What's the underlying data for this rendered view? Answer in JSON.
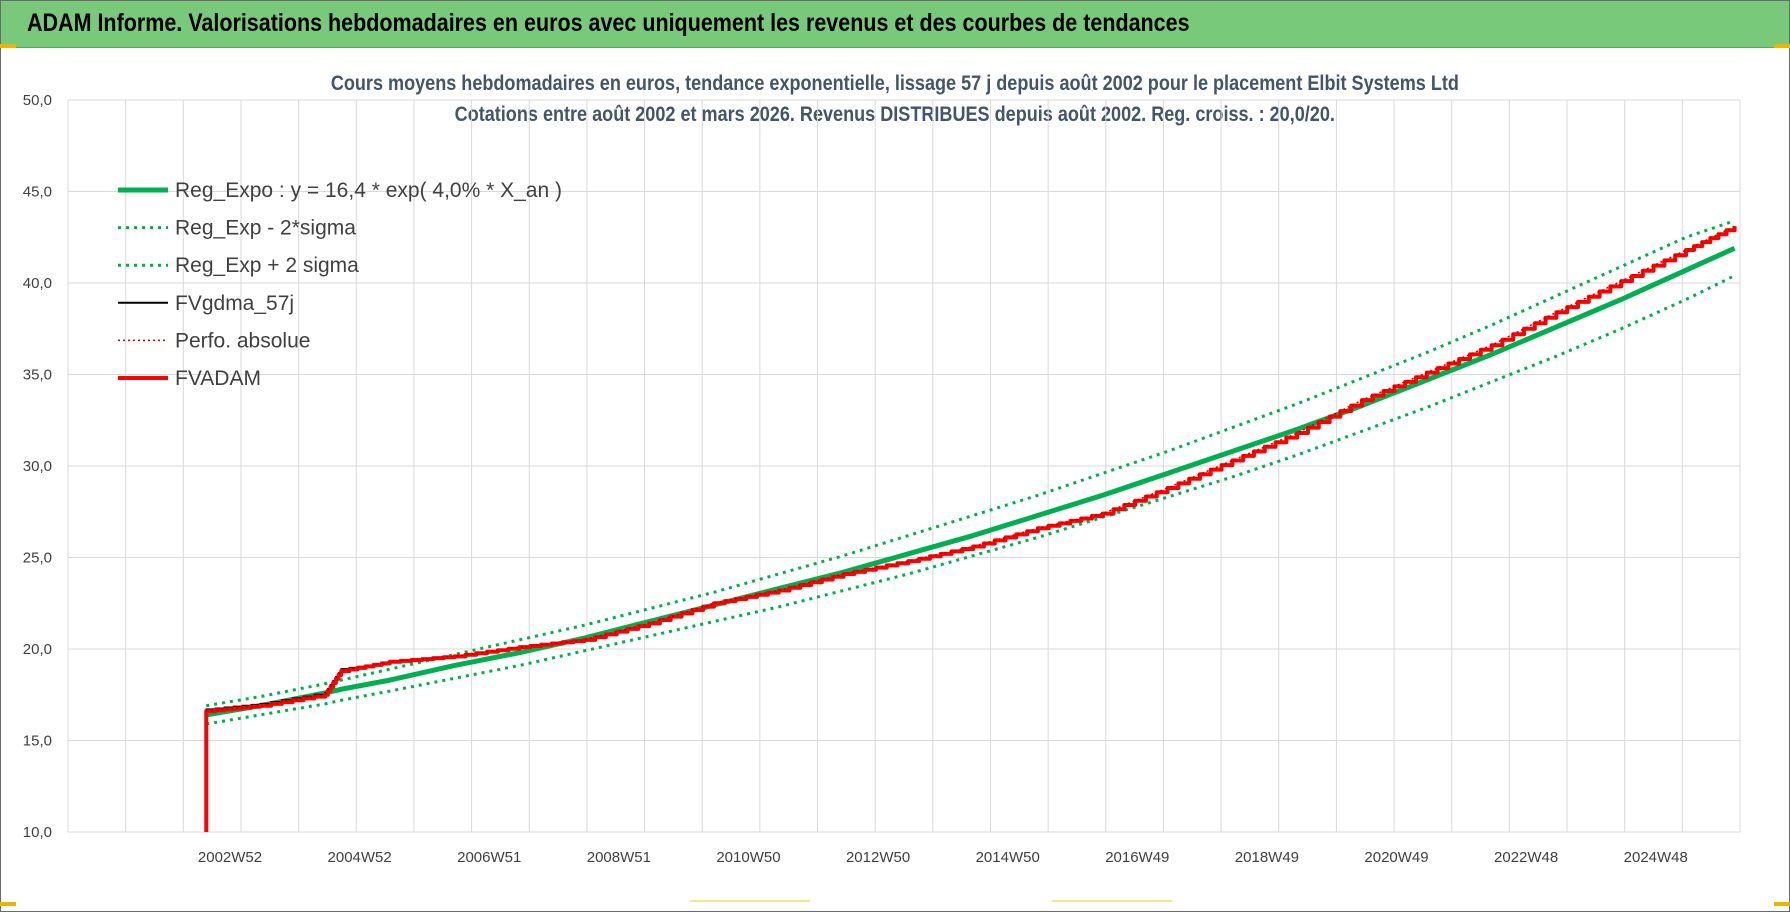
{
  "banner": {
    "title": "ADAM Informe. Valorisations hebdomadaires en euros avec uniquement les revenus et des courbes de tendances"
  },
  "colors": {
    "banner": "#79c97a",
    "trend": "#00b050",
    "fvgdma": "#000000",
    "fvadam": "#ff0000",
    "perfo": "#c00000",
    "title_text": "#44546a"
  },
  "chart_data": {
    "type": "line",
    "title": "Cours moyens hebdomadaires en euros, tendance exponentielle, lissage 57 j depuis août 2002 pour le placement Elbit Systems Ltd",
    "subtitle": "Cotations entre août 2002 et mars 2026. Revenus DISTRIBUES depuis août 2002. Reg. croiss. : 20,0/20.",
    "xlabel": "",
    "ylabel": "",
    "ylim": [
      10,
      50
    ],
    "y_ticks": [
      "10,0",
      "15,0",
      "20,0",
      "25,0",
      "30,0",
      "35,0",
      "40,0",
      "45,0",
      "50,0"
    ],
    "x_tick_labels": [
      "2002W52",
      "2004W52",
      "2006W51",
      "2008W51",
      "2010W50",
      "2012W50",
      "2014W50",
      "2016W49",
      "2018W49",
      "2020W49",
      "2022W48",
      "2024W48"
    ],
    "grid": true,
    "legend_position": "top-left",
    "x": [
      "2002-08",
      "2003-06",
      "2004-06",
      "2004-09",
      "2005-06",
      "2006-06",
      "2007-06",
      "2008-06",
      "2009-06",
      "2010-06",
      "2011-06",
      "2012-06",
      "2013-06",
      "2014-06",
      "2015-06",
      "2016-06",
      "2017-06",
      "2018-06",
      "2019-06",
      "2020-06",
      "2021-06",
      "2022-06",
      "2023-06",
      "2024-06",
      "2025-06",
      "2026-03"
    ],
    "series": [
      {
        "name": "Reg_Expo : y = 16,4 * exp( 4,0% *  X_an )",
        "style": "solid-thick",
        "color": "#00b050",
        "values": [
          16.4,
          16.9,
          17.6,
          17.8,
          18.3,
          19.1,
          19.8,
          20.6,
          21.5,
          22.4,
          23.3,
          24.2,
          25.2,
          26.2,
          27.3,
          28.4,
          29.6,
          30.8,
          32.0,
          33.3,
          34.7,
          36.1,
          37.6,
          39.1,
          40.7,
          41.9
        ]
      },
      {
        "name": "Reg_Exp - 2*sigma",
        "style": "dotted",
        "color": "#00b050",
        "values": [
          15.9,
          16.4,
          17.0,
          17.2,
          17.7,
          18.4,
          19.1,
          19.9,
          20.7,
          21.5,
          22.3,
          23.2,
          24.1,
          25.1,
          26.1,
          27.2,
          28.3,
          29.4,
          30.6,
          31.9,
          33.2,
          34.6,
          36.0,
          37.5,
          39.1,
          40.4
        ]
      },
      {
        "name": "Reg_Exp + 2 sigma",
        "style": "dotted",
        "color": "#00b050",
        "values": [
          16.9,
          17.4,
          18.1,
          18.3,
          18.9,
          19.7,
          20.5,
          21.3,
          22.2,
          23.1,
          24.1,
          25.1,
          26.2,
          27.3,
          28.4,
          29.6,
          30.8,
          32.1,
          33.4,
          34.8,
          36.2,
          37.7,
          39.3,
          40.9,
          42.5,
          43.4
        ]
      },
      {
        "name": "FVgdma_57j",
        "style": "solid",
        "color": "#000000",
        "values": [
          16.7,
          17.0,
          17.6,
          18.9,
          19.3,
          19.6,
          20.1,
          20.5,
          21.4,
          22.5,
          23.2,
          24.1,
          24.8,
          25.6,
          26.6,
          27.4,
          28.8,
          30.3,
          31.8,
          33.6,
          35.1,
          36.6,
          38.4,
          40.1,
          41.8,
          43.1
        ]
      },
      {
        "name": "Perfo. absolue",
        "style": "dotted-thin",
        "color": "#c00000",
        "values": [
          16.6,
          16.9,
          17.5,
          18.8,
          19.3,
          19.6,
          20.1,
          20.5,
          21.4,
          22.5,
          23.2,
          24.1,
          24.8,
          25.6,
          26.6,
          27.4,
          28.8,
          30.3,
          31.8,
          33.6,
          35.1,
          36.6,
          38.4,
          40.1,
          41.8,
          43.1
        ]
      },
      {
        "name": "FVADAM",
        "style": "solid-thick",
        "color": "#ff0000",
        "values": [
          16.6,
          16.9,
          17.5,
          18.8,
          19.3,
          19.6,
          20.1,
          20.5,
          21.4,
          22.5,
          23.2,
          24.1,
          24.8,
          25.6,
          26.6,
          27.4,
          28.8,
          30.3,
          31.8,
          33.6,
          35.1,
          36.6,
          38.4,
          40.1,
          41.8,
          43.1
        ]
      }
    ]
  }
}
